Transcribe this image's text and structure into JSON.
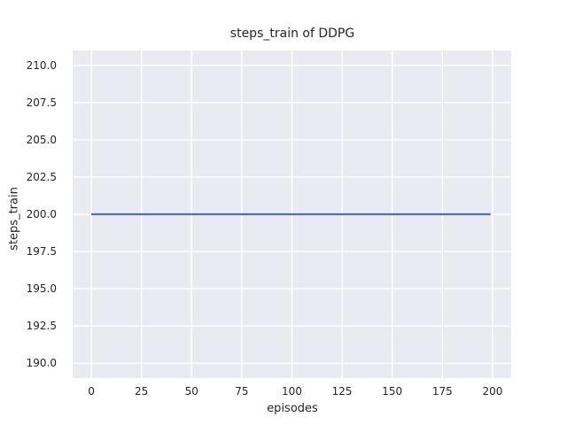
{
  "chart_data": {
    "type": "line",
    "title": "steps_train of DDPG",
    "xlabel": "episodes",
    "ylabel": "steps_train",
    "x_ticks": [
      0,
      25,
      50,
      75,
      100,
      125,
      150,
      175,
      200
    ],
    "x_tick_labels": [
      "0",
      "25",
      "50",
      "75",
      "100",
      "125",
      "150",
      "175",
      "200"
    ],
    "y_ticks": [
      190.0,
      192.5,
      195.0,
      197.5,
      200.0,
      202.5,
      205.0,
      207.5,
      210.0
    ],
    "y_tick_labels": [
      "190.0",
      "192.5",
      "195.0",
      "197.5",
      "200.0",
      "202.5",
      "205.0",
      "207.5",
      "210.0"
    ],
    "xlim": [
      -9.3,
      209.3
    ],
    "ylim": [
      189.0,
      211.0
    ],
    "grid": true,
    "legend_position": "none",
    "series": [
      {
        "name": "steps_train",
        "x": [
          0,
          199
        ],
        "y": [
          200,
          200
        ],
        "color": "#4c72b0",
        "line_width": 2.2
      }
    ],
    "colors": {
      "plot_background": "#eaeaf2",
      "figure_background": "#ffffff",
      "grid": "#ffffff",
      "text": "#262626"
    }
  }
}
